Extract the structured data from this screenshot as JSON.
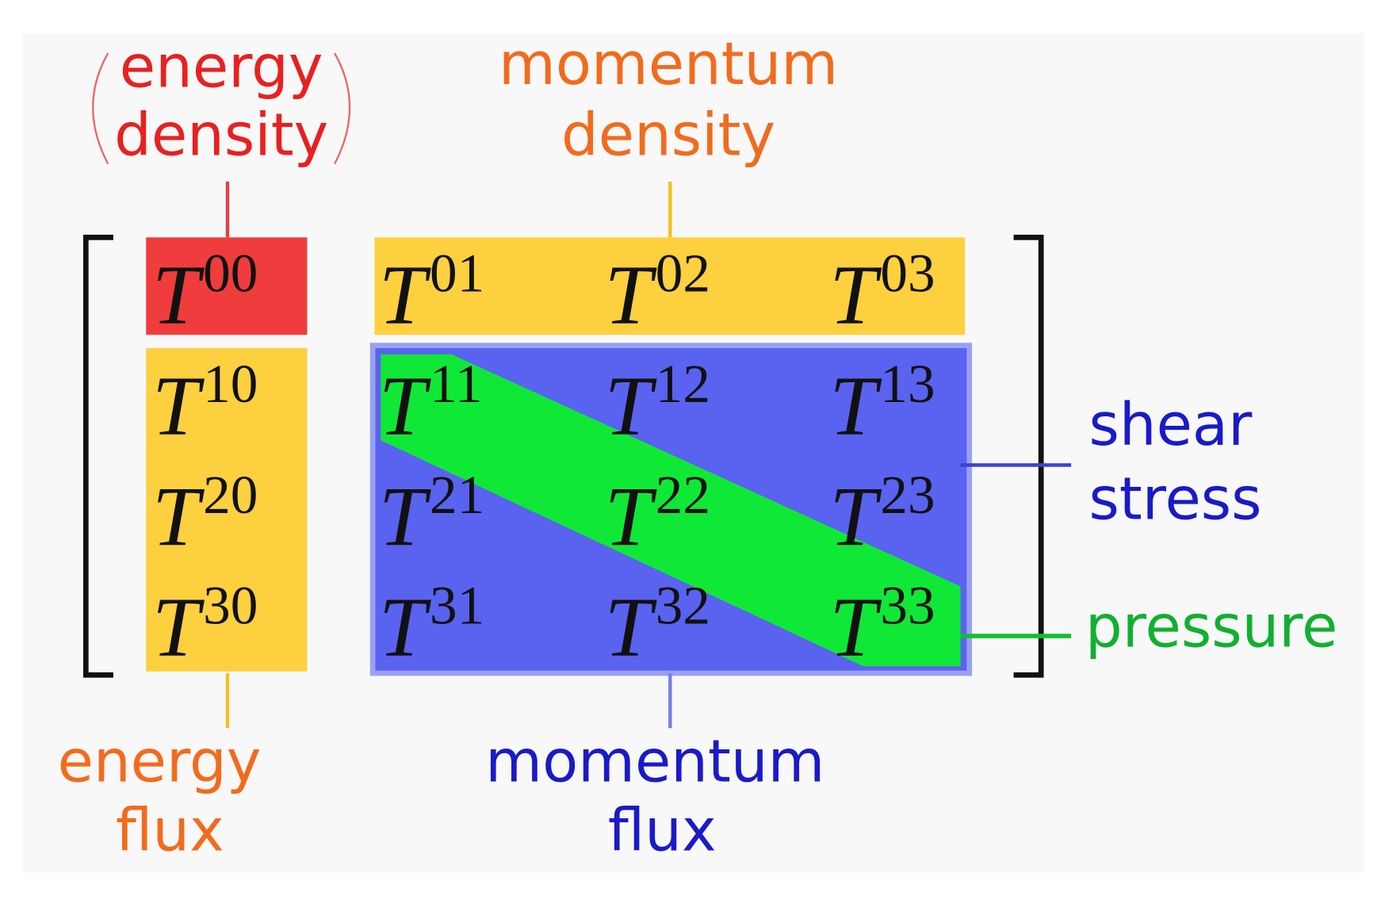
{
  "labels": {
    "energy_density": [
      "energy",
      "density"
    ],
    "momentum_density": [
      "momentum",
      "density"
    ],
    "energy_flux": [
      "energy",
      "flux"
    ],
    "momentum_flux": [
      "momentum",
      "flux"
    ],
    "shear_stress": [
      "shear",
      "stress"
    ],
    "pressure": "pressure"
  },
  "matrix": {
    "rows": [
      [
        {
          "symbol": "T",
          "index": "00"
        },
        {
          "symbol": "T",
          "index": "01"
        },
        {
          "symbol": "T",
          "index": "02"
        },
        {
          "symbol": "T",
          "index": "03"
        }
      ],
      [
        {
          "symbol": "T",
          "index": "10"
        },
        {
          "symbol": "T",
          "index": "11"
        },
        {
          "symbol": "T",
          "index": "12"
        },
        {
          "symbol": "T",
          "index": "13"
        }
      ],
      [
        {
          "symbol": "T",
          "index": "20"
        },
        {
          "symbol": "T",
          "index": "21"
        },
        {
          "symbol": "T",
          "index": "22"
        },
        {
          "symbol": "T",
          "index": "23"
        }
      ],
      [
        {
          "symbol": "T",
          "index": "30"
        },
        {
          "symbol": "T",
          "index": "31"
        },
        {
          "symbol": "T",
          "index": "32"
        },
        {
          "symbol": "T",
          "index": "33"
        }
      ]
    ]
  }
}
